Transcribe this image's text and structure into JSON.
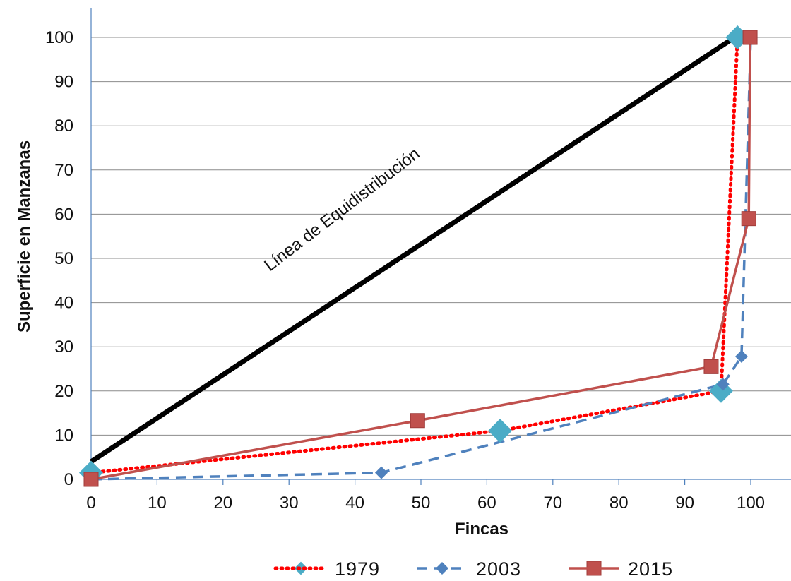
{
  "chart_data": {
    "type": "line",
    "title": "",
    "xlabel": "Fincas",
    "ylabel": "Superficie en Manzanas",
    "xlim": [
      0,
      100
    ],
    "ylim": [
      0,
      100
    ],
    "x_ticks": [
      "0",
      "10",
      "20",
      "30",
      "40",
      "50",
      "60",
      "70",
      "80",
      "90",
      "100"
    ],
    "y_ticks": [
      "0",
      "10",
      "20",
      "30",
      "40",
      "50",
      "60",
      "70",
      "80",
      "90",
      "100"
    ],
    "grid": "horizontal",
    "legend_position": "bottom",
    "annotation": "Línea de Equidistribución",
    "equidistribution_line": {
      "x": [
        0,
        100
      ],
      "y": [
        4,
        102
      ],
      "color": "#000000"
    },
    "series": [
      {
        "name": "1979",
        "color": "#ff0000",
        "marker_color": "#4bacc6",
        "line_style": "dotted",
        "marker": "diamond-large",
        "points": [
          [
            0,
            1.5
          ],
          [
            62,
            11
          ],
          [
            95.5,
            20
          ],
          [
            98,
            100
          ]
        ]
      },
      {
        "name": "2003",
        "color": "#4f81bd",
        "marker_color": "#4f81bd",
        "line_style": "dashed",
        "marker": "diamond",
        "points": [
          [
            0,
            0
          ],
          [
            44,
            1.5
          ],
          [
            95.8,
            21.5
          ],
          [
            98.6,
            27.8
          ],
          [
            100,
            100
          ]
        ]
      },
      {
        "name": "2015",
        "color": "#c0504d",
        "marker_color": "#c0504d",
        "line_style": "solid",
        "marker": "square",
        "points": [
          [
            0,
            0
          ],
          [
            49.5,
            13.3
          ],
          [
            94,
            25.5
          ],
          [
            99.7,
            59
          ],
          [
            99.9,
            100
          ]
        ]
      }
    ]
  }
}
